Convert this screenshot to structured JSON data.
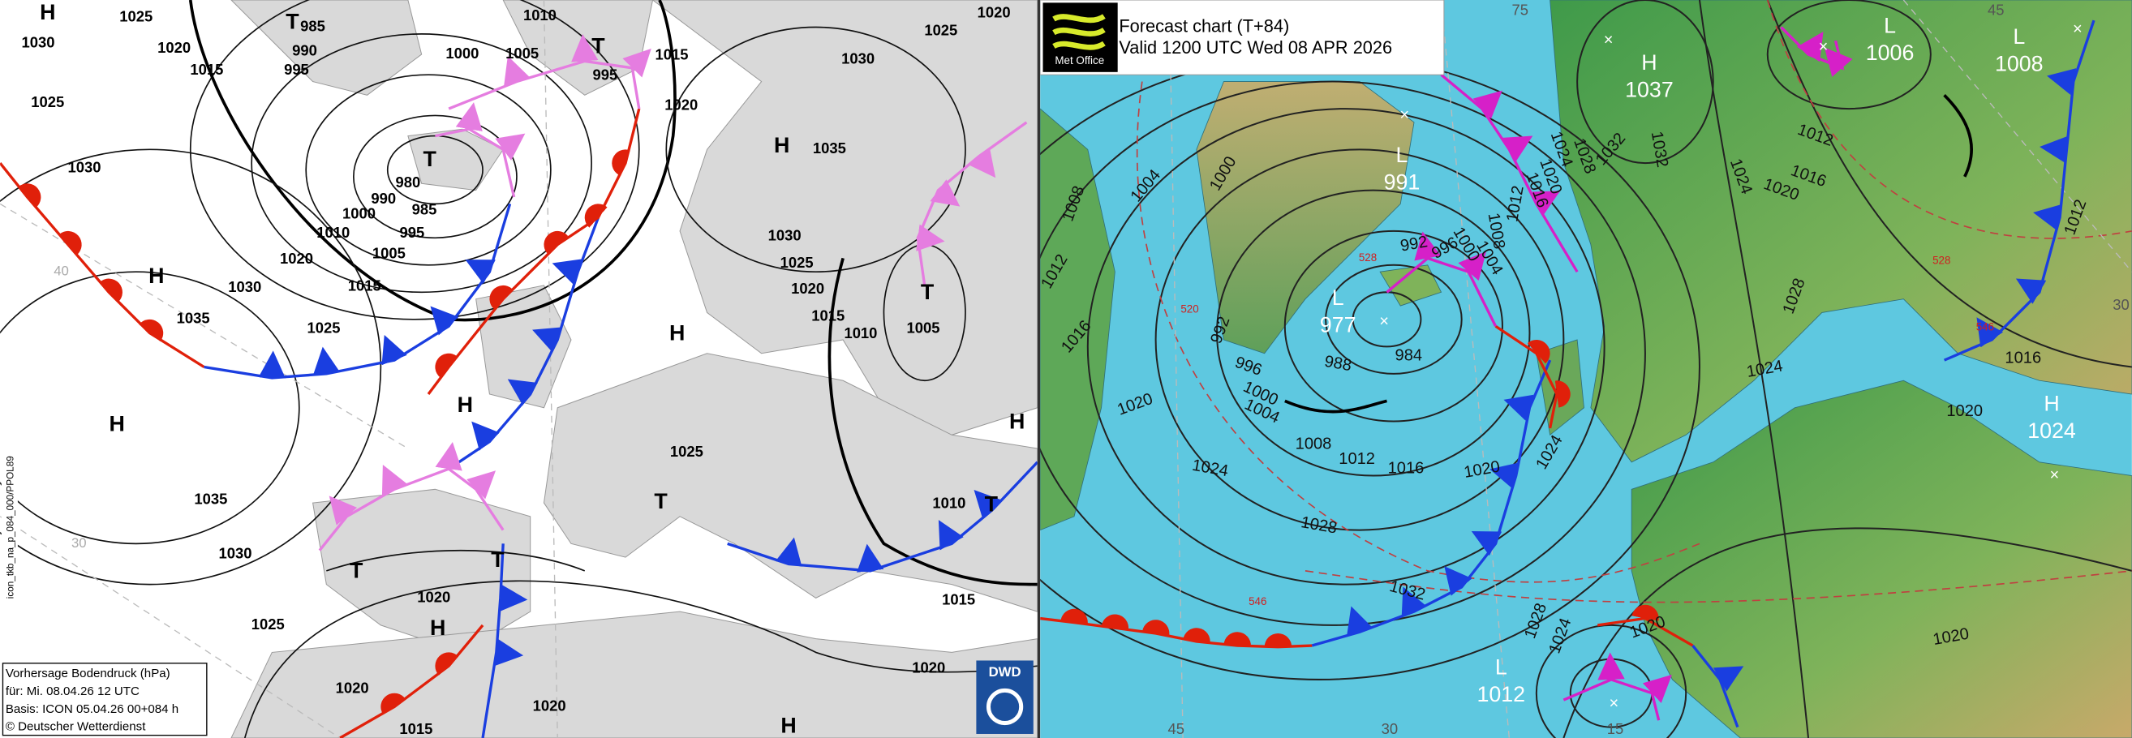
{
  "dwd_chart": {
    "labels": [
      "H",
      "1025",
      "1030",
      "T",
      "985",
      "990",
      "995",
      "1020",
      "1015",
      "1025",
      "1030",
      "1000",
      "1005",
      "1010",
      "T",
      "995",
      "1015",
      "1020",
      "T",
      "980",
      "990",
      "985",
      "1000",
      "995",
      "1010",
      "1005",
      "1020",
      "1015",
      "H",
      "1035",
      "1030",
      "1025",
      "H",
      "1035",
      "1030",
      "1025",
      "1020",
      "1030",
      "1025",
      "1020",
      "1015",
      "1010",
      "1005",
      "T",
      "H",
      "H",
      "H",
      "1025",
      "1035",
      "1030",
      "T",
      "T",
      "T",
      "T",
      "H",
      "1010",
      "1015",
      "1020",
      "H",
      "1025",
      "1020",
      "1020",
      "1020",
      "1015",
      "H"
    ],
    "grid_labels": [
      "40",
      "30"
    ],
    "legend": [
      "Vorhersage Bodendruck (hPa)",
      "für:  Mi. 08.04.26  12 UTC",
      "Basis: ICON  05.04.26 00+084 h",
      "© Deutscher Wetterdienst"
    ],
    "side_code": "icon_tkb_na_p_084_000/PPOL89",
    "logo": "DWD"
  },
  "met_office_chart": {
    "title": "Forecast chart (T+84)",
    "valid": "Valid 1200 UTC Wed 08 APR 2026",
    "logo": "Met Office",
    "centers": [
      {
        "type": "H",
        "pressure": "1037"
      },
      {
        "type": "L",
        "pressure": "991"
      },
      {
        "type": "L",
        "pressure": "977"
      },
      {
        "type": "L",
        "pressure": "1006"
      },
      {
        "type": "L",
        "pressure": "1008"
      },
      {
        "type": "H",
        "pressure": "1024"
      },
      {
        "type": "L",
        "pressure": "1012"
      }
    ],
    "isobar_labels": [
      "1008",
      "1004",
      "1000",
      "1012",
      "1016",
      "1020",
      "1024",
      "1028",
      "1032",
      "992",
      "996",
      "1000",
      "1004",
      "1008",
      "1012",
      "1016",
      "1020",
      "1024",
      "988",
      "984",
      "992",
      "996",
      "1000",
      "1004",
      "1008",
      "1012",
      "1016",
      "1020",
      "1024",
      "1028",
      "1032",
      "1032",
      "1024",
      "1020",
      "1016",
      "1012",
      "1028",
      "1024",
      "1020",
      "1016",
      "1012",
      "1028",
      "1024",
      "1020",
      "1020"
    ],
    "thickness_labels": [
      "528",
      "546",
      "520",
      "528",
      "546"
    ],
    "grid_labels": [
      "75",
      "45",
      "30",
      "45",
      "30",
      "15"
    ]
  }
}
